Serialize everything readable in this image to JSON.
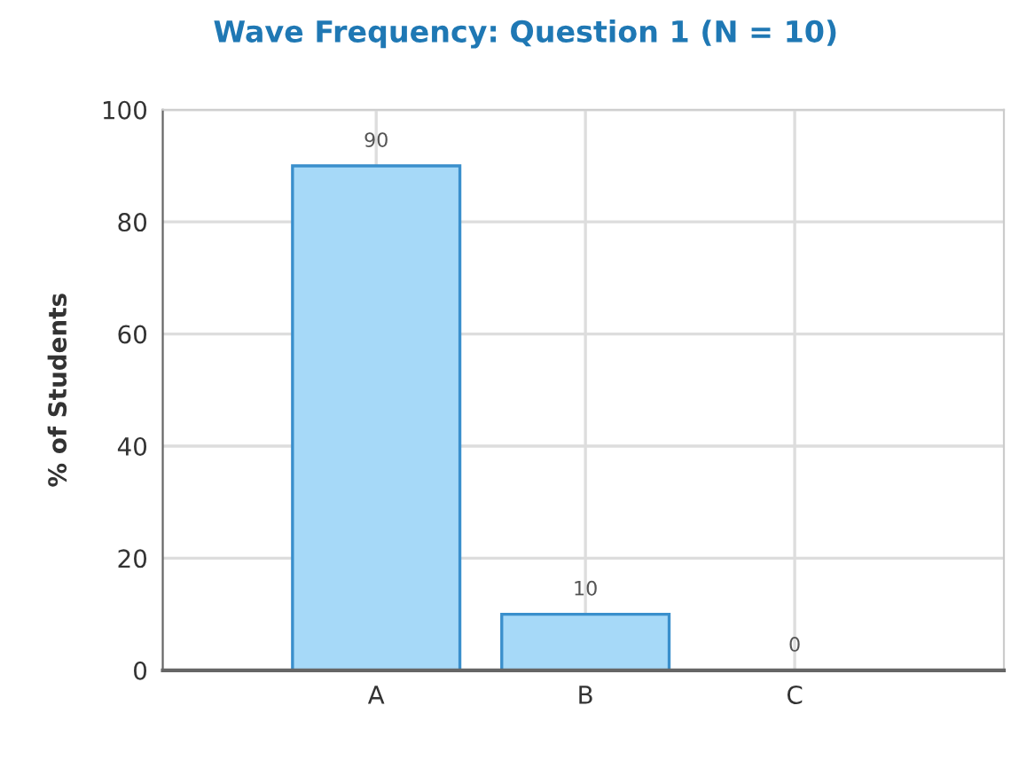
{
  "chart_data": {
    "type": "bar",
    "title": "Wave Frequency: Question 1 (N = 10)",
    "ylabel": "% of Students",
    "categories": [
      "A",
      "B",
      "C"
    ],
    "values": [
      90,
      10,
      0
    ],
    "color": "#a6d9f8",
    "ylim": [
      0,
      100
    ],
    "yticks": [
      0,
      20,
      40,
      60,
      80,
      100
    ],
    "grid": true,
    "data_labels": true
  }
}
